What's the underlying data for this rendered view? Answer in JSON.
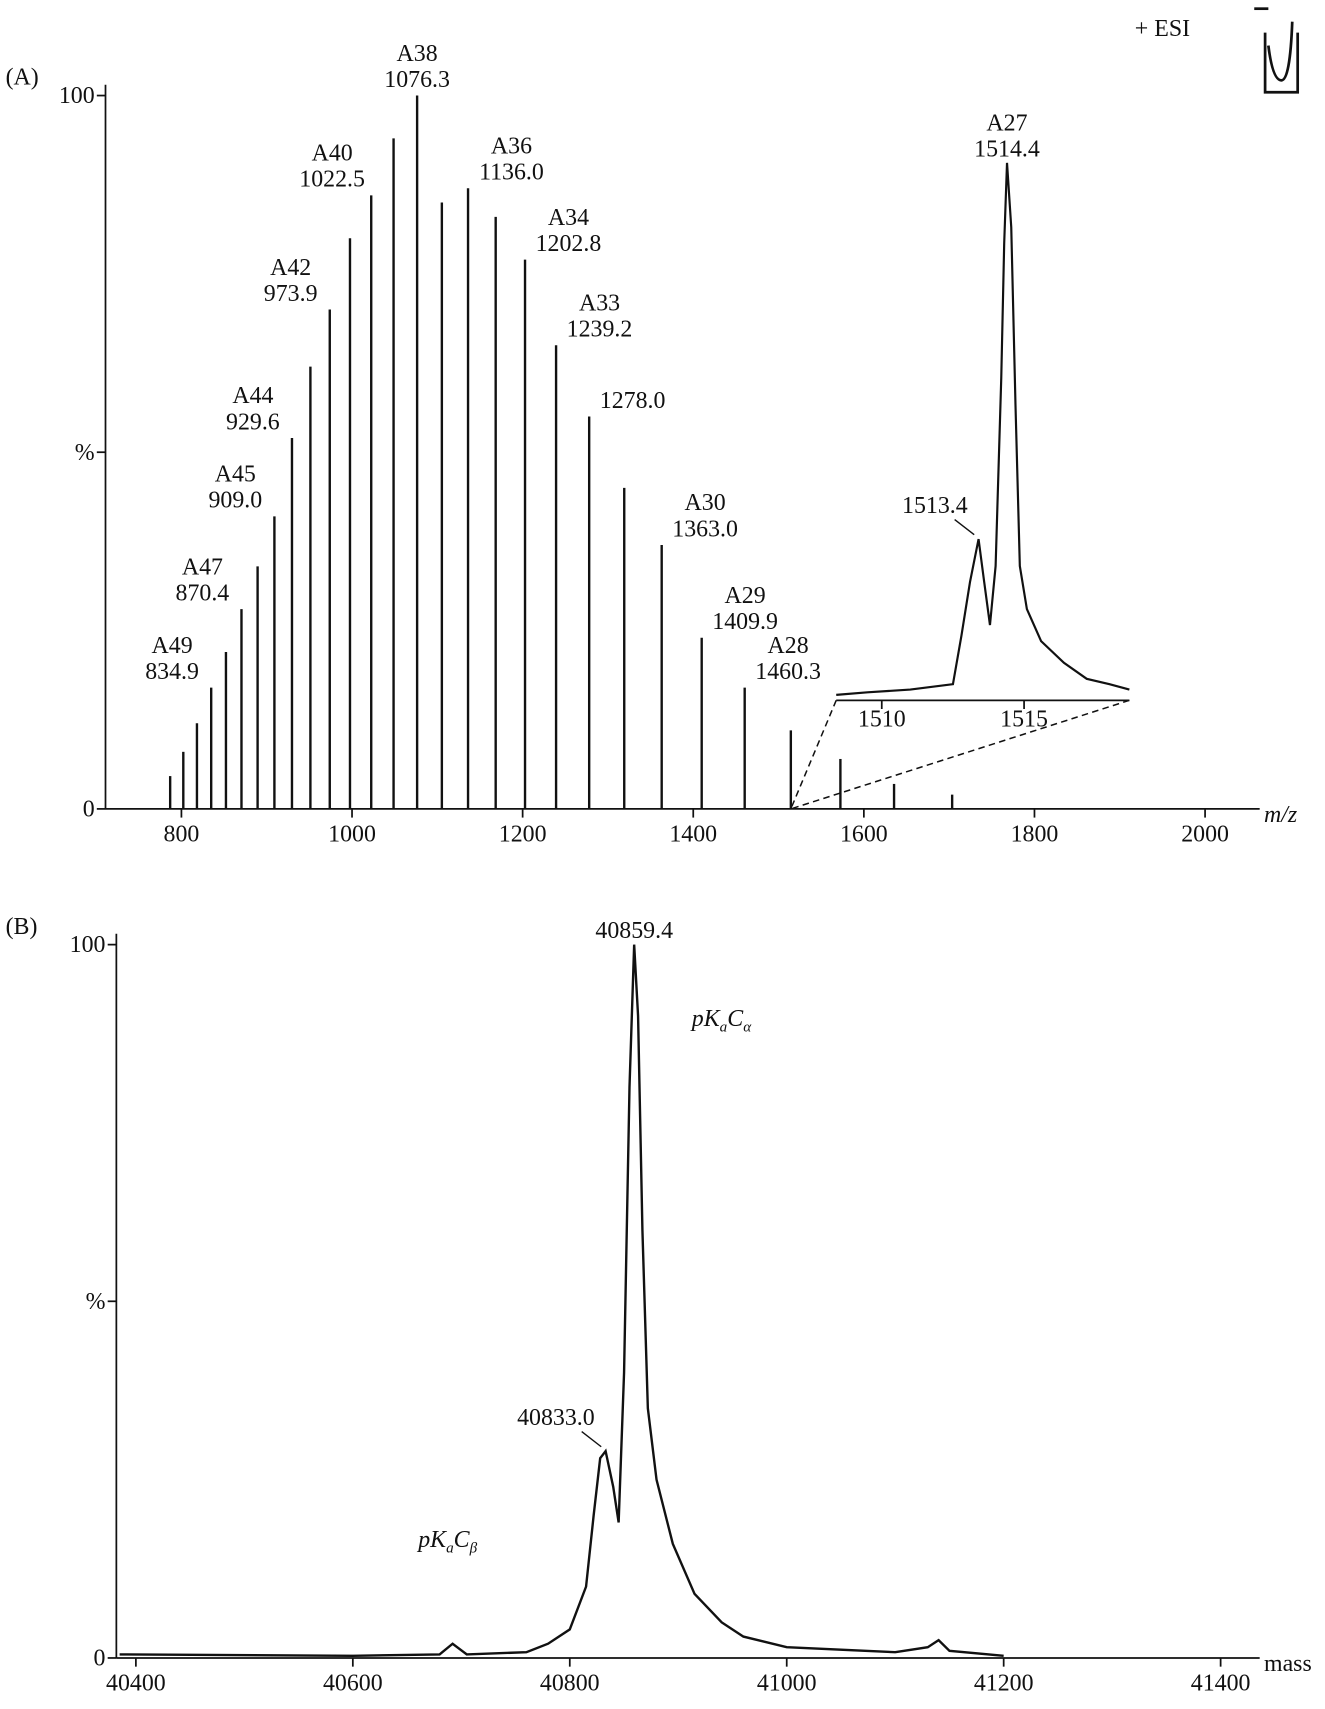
{
  "chart_data": [
    {
      "type": "bar",
      "panel_label": "(A)",
      "ion_mode": "+ ESI",
      "x_label": "m/z",
      "color": "#111111",
      "x": [
        786.8,
        802.2,
        818.2,
        834.9,
        852.2,
        870.4,
        889.3,
        909.0,
        929.6,
        951.2,
        973.9,
        997.6,
        1022.5,
        1048.7,
        1076.3,
        1105.3,
        1136.0,
        1168.4,
        1202.8,
        1239.2,
        1278.0,
        1319.1,
        1363.0,
        1409.9,
        1460.3,
        1514.4,
        1572.5,
        1635.4,
        1703.5
      ],
      "values": [
        4.6,
        8,
        12,
        17,
        22,
        28,
        34,
        41,
        52,
        62,
        70,
        80,
        86,
        94,
        100,
        85,
        87,
        83,
        77,
        65,
        55,
        45,
        37,
        24,
        17,
        11,
        7,
        3.5,
        2
      ],
      "peak_names": [
        null,
        null,
        null,
        "A49",
        null,
        "A47",
        null,
        "A45",
        "A44",
        null,
        "A42",
        null,
        "A40",
        null,
        "A38",
        null,
        "A36",
        null,
        "A34",
        "A33",
        null,
        null,
        "A30",
        "A29",
        "A28",
        null,
        null,
        null,
        null
      ],
      "x_labels": [
        null,
        null,
        null,
        "834.9",
        null,
        "870.4",
        null,
        "909.0",
        "929.6",
        null,
        "973.9",
        null,
        "1022.5",
        null,
        "1076.3",
        null,
        "1136.0",
        null,
        "1202.8",
        "1239.2",
        "1278.0",
        null,
        "1363.0",
        "1409.9",
        "1460.3",
        null,
        null,
        null,
        null
      ],
      "xlim": [
        711,
        2064
      ],
      "xticks": [
        800,
        1000,
        1200,
        1400,
        1600,
        1800,
        2000
      ],
      "ylim": [
        0,
        100
      ],
      "yticks": [
        0,
        {
          "value": 50,
          "label": "%"
        },
        100
      ],
      "inset": {
        "type": "line",
        "color": "#111111",
        "x": [
          1508.4,
          1509.5,
          1511,
          1512.5,
          1512.8,
          1513.1,
          1513.4,
          1513.6,
          1513.8,
          1514.0,
          1514.2,
          1514.3,
          1514.4,
          1514.55,
          1514.7,
          1514.85,
          1515.1,
          1515.6,
          1516.4,
          1517.2,
          1518,
          1518.7
        ],
        "values": [
          1,
          1.5,
          2,
          3,
          12,
          22,
          30,
          22,
          14,
          25,
          60,
          85,
          100,
          88,
          55,
          25,
          17,
          11,
          7,
          4,
          3,
          2
        ],
        "xlim": [
          1508.4,
          1518.7
        ],
        "xticks": [
          1510,
          1515
        ],
        "ylim": [
          0,
          100
        ],
        "annotations": [
          {
            "label": "1513.4",
            "x": 1513.4
          },
          {
            "name": "A27",
            "label": "1514.4",
            "x": 1514.4
          }
        ]
      }
    },
    {
      "type": "line",
      "panel_label": "(B)",
      "x_label": "mass",
      "color": "#111111",
      "x": [
        40385,
        40600,
        40680,
        40692,
        40705,
        40760,
        40780,
        40800,
        40815,
        40822,
        40828,
        40833.0,
        40840,
        40845,
        40850,
        40855,
        40859.4,
        40863,
        40867,
        40872,
        40880,
        40895,
        40915,
        40940,
        40960,
        41000,
        41100,
        41130,
        41140,
        41150,
        41200
      ],
      "values": [
        0.5,
        0.3,
        0.5,
        2,
        0.5,
        0.8,
        2,
        4,
        10,
        20,
        28,
        29,
        24,
        19,
        40,
        80,
        100,
        90,
        60,
        35,
        25,
        16,
        9,
        5,
        3,
        1.5,
        0.8,
        1.5,
        2.5,
        1,
        0.3
      ],
      "xlim": [
        40382,
        41436
      ],
      "xticks": [
        40400,
        40600,
        40800,
        41000,
        41200,
        41400
      ],
      "ylim": [
        0,
        100
      ],
      "yticks": [
        0,
        {
          "value": 50,
          "label": "%"
        },
        100
      ],
      "annotations": [
        {
          "label": "40859.4",
          "x": 40859.4
        },
        {
          "label": "40833.0",
          "x": 40833.0
        }
      ],
      "species": [
        [
          "pK",
          "a",
          "C",
          "α"
        ],
        [
          "pK",
          "a",
          "C",
          "β"
        ]
      ]
    }
  ]
}
